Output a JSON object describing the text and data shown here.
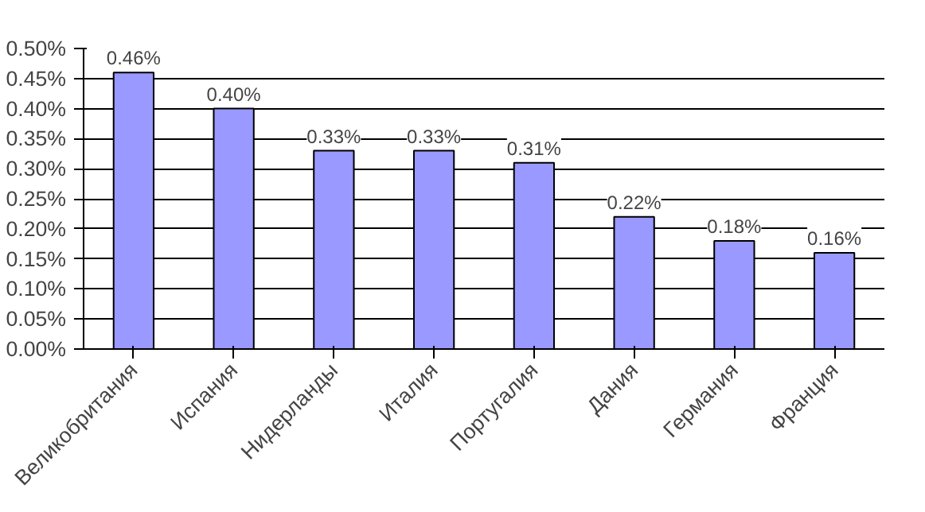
{
  "chart_data": {
    "type": "bar",
    "categories": [
      "Великобритания",
      "Испания",
      "Нидерланды",
      "Италия",
      "Португалия",
      "Дания",
      "Германия",
      "Франция"
    ],
    "values": [
      0.46,
      0.4,
      0.33,
      0.33,
      0.31,
      0.22,
      0.18,
      0.16
    ],
    "value_labels": [
      "0.46%",
      "0.40%",
      "0.33%",
      "0.33%",
      "0.31%",
      "0.22%",
      "0.18%",
      "0.16%"
    ],
    "color": "#9999ff",
    "ylim": [
      0,
      0.5
    ],
    "yticks": [
      {
        "value": 0,
        "label": "0.00%"
      },
      {
        "value": 0.05,
        "label": "0.05%"
      },
      {
        "value": 0.1,
        "label": "0.10%"
      },
      {
        "value": 0.15,
        "label": "0.15%"
      },
      {
        "value": 0.2,
        "label": "0.20%"
      },
      {
        "value": 0.25,
        "label": "0.25%"
      },
      {
        "value": 0.3,
        "label": "0.30%"
      },
      {
        "value": 0.35,
        "label": "0.35%"
      },
      {
        "value": 0.4,
        "label": "0.40%"
      },
      {
        "value": 0.45,
        "label": "0.45%"
      },
      {
        "value": 0.5,
        "label": "0.50%"
      }
    ],
    "grid": "y"
  }
}
